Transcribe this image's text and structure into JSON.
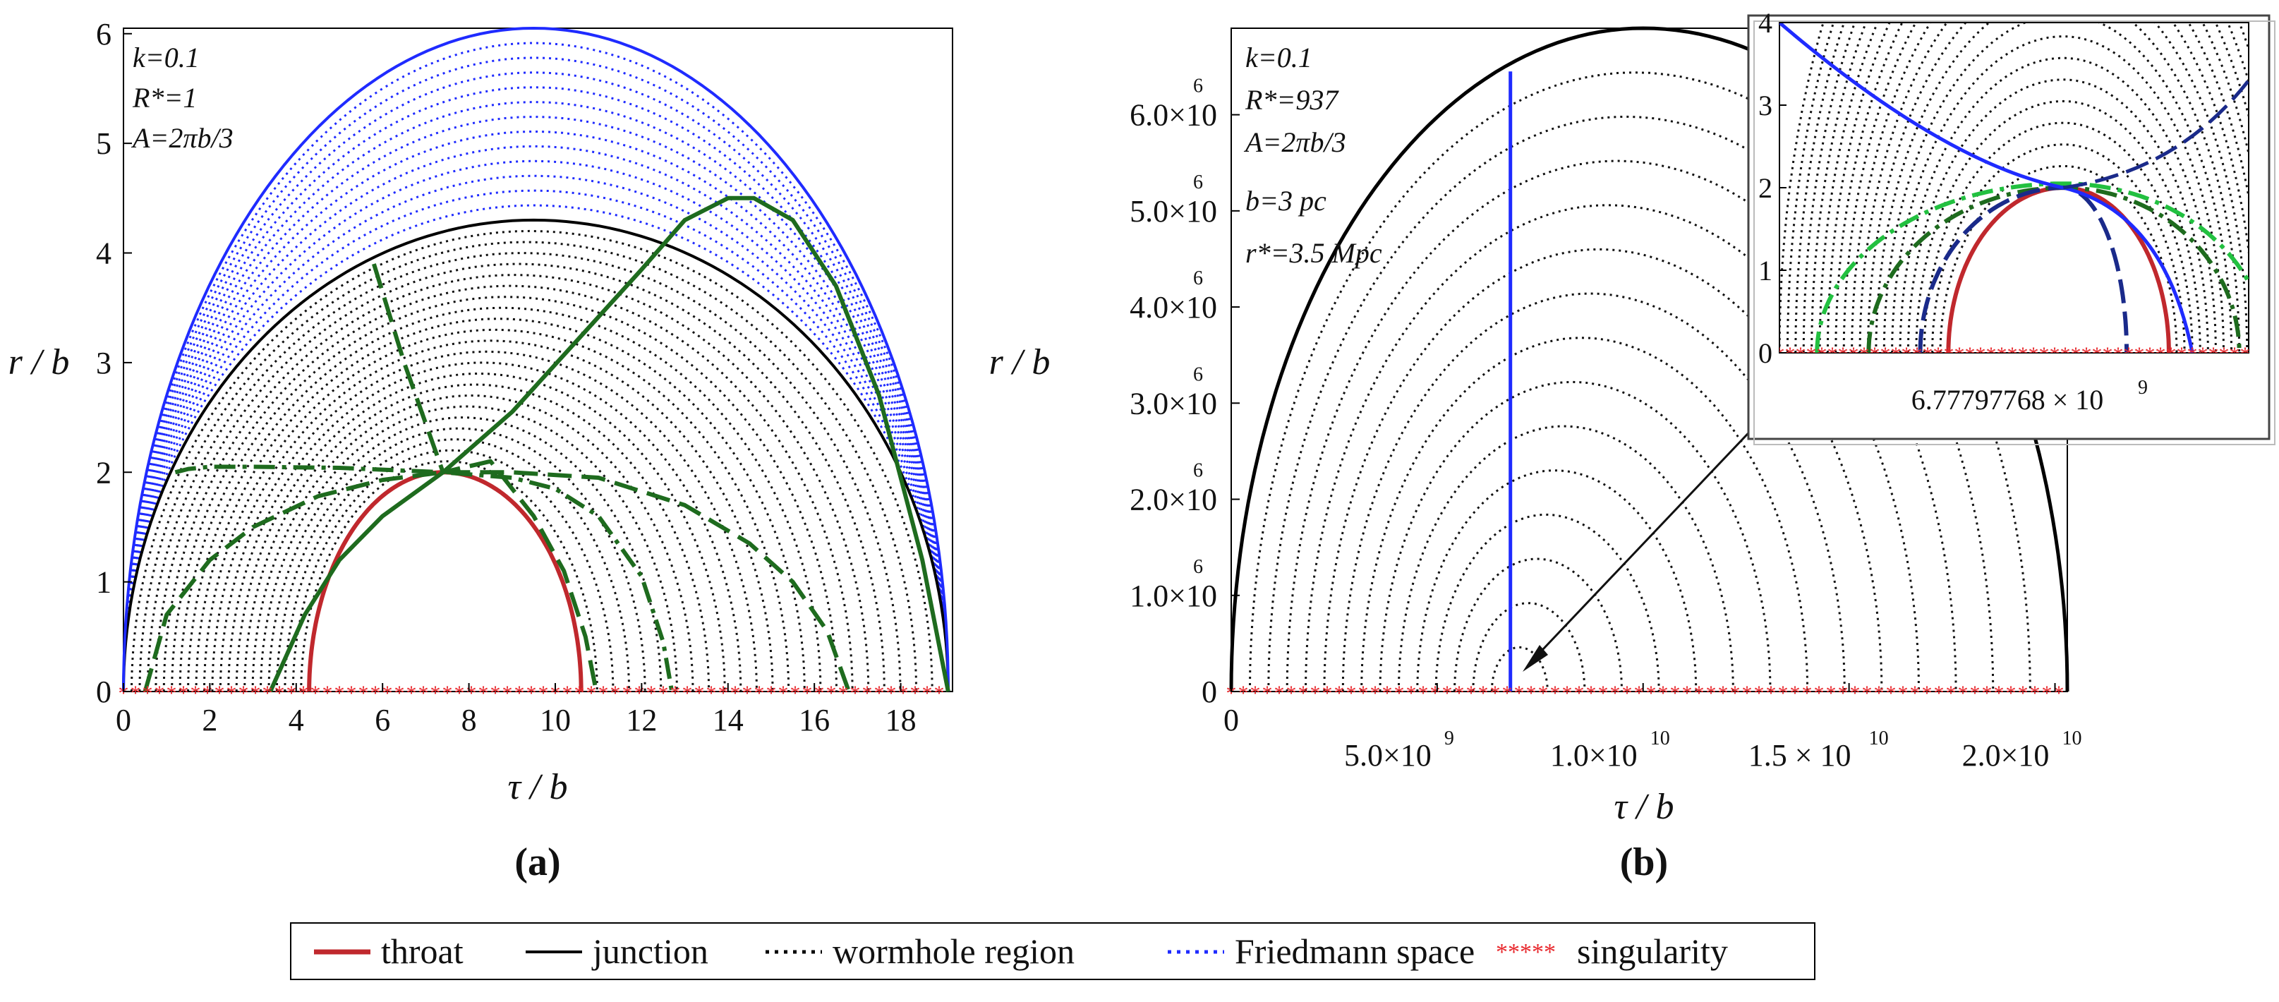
{
  "chart_data": [
    {
      "type": "line",
      "panel_label": "(a)",
      "xlabel": "τ / b",
      "ylabel": "r / b",
      "xlim": [
        0,
        19.2
      ],
      "ylim": [
        0,
        6.05
      ],
      "xticks": [
        "0",
        "2",
        "4",
        "6",
        "8",
        "10",
        "12",
        "14",
        "16",
        "18"
      ],
      "yticks": [
        "0",
        "1",
        "2",
        "3",
        "4",
        "5",
        "6"
      ],
      "annotations": [
        "k=0.1",
        "R*=1",
        "A=2πb/3"
      ],
      "series": [
        {
          "name": "throat",
          "shape": "semi-ellipse",
          "x_range": [
            4.3,
            10.6
          ],
          "peak": [
            7.4,
            2.0
          ],
          "color": "#c0282d"
        },
        {
          "name": "junction",
          "shape": "semi-ellipse",
          "x_range": [
            0,
            19.1
          ],
          "peak": [
            9.5,
            4.3
          ],
          "color": "#000000"
        },
        {
          "name": "friedmann_boundary",
          "shape": "semi-ellipse",
          "x_range": [
            0,
            19.1
          ],
          "peak": [
            9.5,
            6.05
          ],
          "color": "#1f2bff"
        },
        {
          "name": "green_solid",
          "x": [
            3.4,
            4.2,
            5.0,
            6.0,
            7.4,
            9.0,
            10.5,
            12.0,
            13.0,
            14.0,
            14.6,
            15.5,
            16.5,
            17.5,
            18.5,
            19.1
          ],
          "y": [
            0,
            0.7,
            1.2,
            1.6,
            2.0,
            2.55,
            3.2,
            3.85,
            4.3,
            4.5,
            4.5,
            4.3,
            3.7,
            2.7,
            1.2,
            0
          ],
          "color": "#1e6b1e"
        },
        {
          "name": "green_dash_long",
          "x": [
            0.5,
            1.0,
            2.0,
            3.0,
            4.5,
            6.0,
            7.4,
            9.0,
            11.0,
            13.0,
            14.5,
            15.5,
            16.3,
            16.8
          ],
          "y": [
            0,
            0.7,
            1.2,
            1.5,
            1.78,
            1.93,
            2.0,
            2.0,
            1.95,
            1.7,
            1.35,
            1.0,
            0.55,
            0
          ],
          "color": "#1e6b1e"
        },
        {
          "name": "green_dashdot",
          "x": [
            1.2,
            1.5,
            2.0,
            3.0,
            5.0,
            7.4,
            9.0,
            10.0,
            11.0,
            12.0,
            12.5,
            12.7
          ],
          "y": [
            2.0,
            2.03,
            2.05,
            2.05,
            2.04,
            2.0,
            1.95,
            1.85,
            1.6,
            1.05,
            0.45,
            0
          ],
          "color": "#1e6b1e"
        },
        {
          "name": "green_dash_falling",
          "x": [
            5.8,
            6.5,
            7.4,
            8.5,
            9.5,
            10.2,
            10.7,
            10.95
          ],
          "y": [
            3.9,
            3.0,
            2.0,
            2.1,
            1.6,
            1.1,
            0.5,
            0
          ],
          "color": "#1e6b1e"
        }
      ],
      "wormhole_region_curves": 24,
      "friedmann_space_curves": 12,
      "singularity_line": {
        "x_range": [
          0,
          19.1
        ],
        "y": 0
      }
    },
    {
      "type": "line",
      "panel_label": "(b)",
      "xlabel": "τ / b",
      "ylabel": "r / b",
      "xlim": [
        0,
        20300000000.0
      ],
      "ylim": [
        0,
        6900000.0
      ],
      "xticks": [
        "0",
        "5.0×10",
        "1.0×10",
        "1.5 × 10",
        "2.0×10"
      ],
      "xtick_exponents": [
        "",
        "9",
        "10",
        "10",
        "10"
      ],
      "yticks": [
        "0",
        "1.0×10",
        "2.0×10",
        "3.0×10",
        "4.0×10",
        "5.0×10",
        "6.0×10"
      ],
      "ytick_exponent": "6",
      "annotations": [
        "k=0.1",
        "R*=937",
        "A=2πb/3",
        "b=3 pc",
        "r*=3.5 Mpc"
      ],
      "series": [
        {
          "name": "junction",
          "shape": "semi-ellipse",
          "x_range": [
            0,
            20300000000.0
          ],
          "peak": [
            10000000000.0,
            6900000.0
          ],
          "color": "#000000"
        },
        {
          "name": "throat_vertical",
          "x": [
            6778000000.0,
            6778000000.0
          ],
          "y": [
            0,
            6450000.0
          ],
          "color": "#1f2bff"
        }
      ],
      "wormhole_region_curves": 14,
      "inset": {
        "xlabel": "6.77797768 × 10",
        "xlabel_exponent": "9",
        "yticks": [
          "0",
          "1",
          "2",
          "3",
          "4"
        ],
        "ylim": [
          0,
          4
        ]
      }
    }
  ],
  "legend": {
    "entries": [
      {
        "label": "throat",
        "style": "solid",
        "color": "#c0282d",
        "sample": ""
      },
      {
        "label": "junction",
        "style": "solid",
        "color": "#000000",
        "sample": ""
      },
      {
        "label": "wormhole region",
        "style": "dotted",
        "color": "#000000",
        "sample": ""
      },
      {
        "label": "Friedmann space",
        "style": "dotted",
        "color": "#1f2bff",
        "sample": ""
      },
      {
        "label": "singularity",
        "style": "stars",
        "color": "#e8282d",
        "sample": "*****"
      }
    ]
  }
}
